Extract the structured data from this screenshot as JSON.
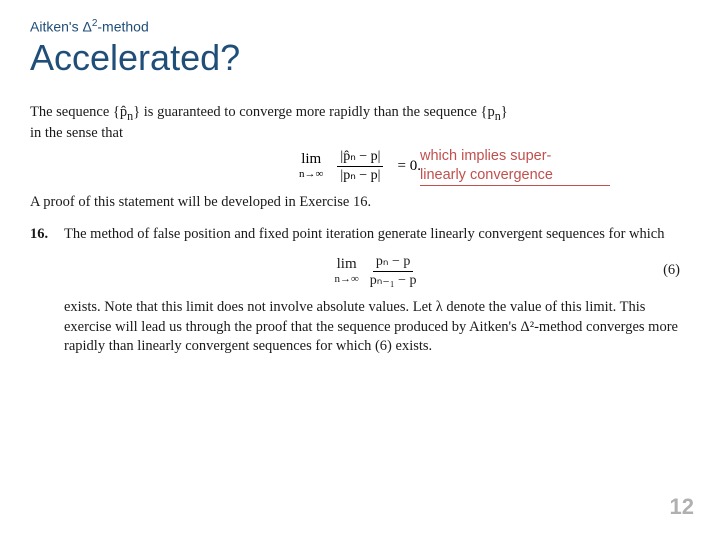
{
  "header": {
    "subtitle_prefix": "Aitken's Δ",
    "subtitle_exp": "2",
    "subtitle_suffix": "-method",
    "title": "Accelerated?"
  },
  "para1": {
    "line1": "The sequence {p̂",
    "line1_sub": "n",
    "line1_cont": "} is guaranteed to converge more rapidly than the sequence {p",
    "line1_sub2": "n",
    "line1_end": "}",
    "line2": "in the sense that"
  },
  "eq1": {
    "lim": "lim",
    "limsub": "n→∞",
    "num": "|p̂ₙ − p|",
    "den": "|pₙ − p|",
    "tail": "= 0."
  },
  "annotation": {
    "line1": "which implies super-",
    "line2": "linearly convergence"
  },
  "para2": "A proof of this statement will be developed in Exercise 16.",
  "exercise": {
    "num": "16.",
    "text1": "The method of false position and fixed point iteration generate linearly convergent sequences for which",
    "eq": {
      "lim": "lim",
      "limsub": "n→∞",
      "num": "pₙ − p",
      "den": "pₙ₋₁ − p",
      "eqnum": "(6)"
    },
    "text2": "exists. Note that this limit does not involve absolute values. Let λ denote the value of this limit. This exercise will lead us through the proof that the sequence produced by Aitken's Δ²-method converges more rapidly than linearly convergent sequences for which (6) exists."
  },
  "page": "12",
  "colors": {
    "heading": "#1f4e79",
    "annotation": "#c0504d",
    "pagenum": "#b0b0b0",
    "text": "#1a1a1a",
    "bg": "#ffffff"
  }
}
